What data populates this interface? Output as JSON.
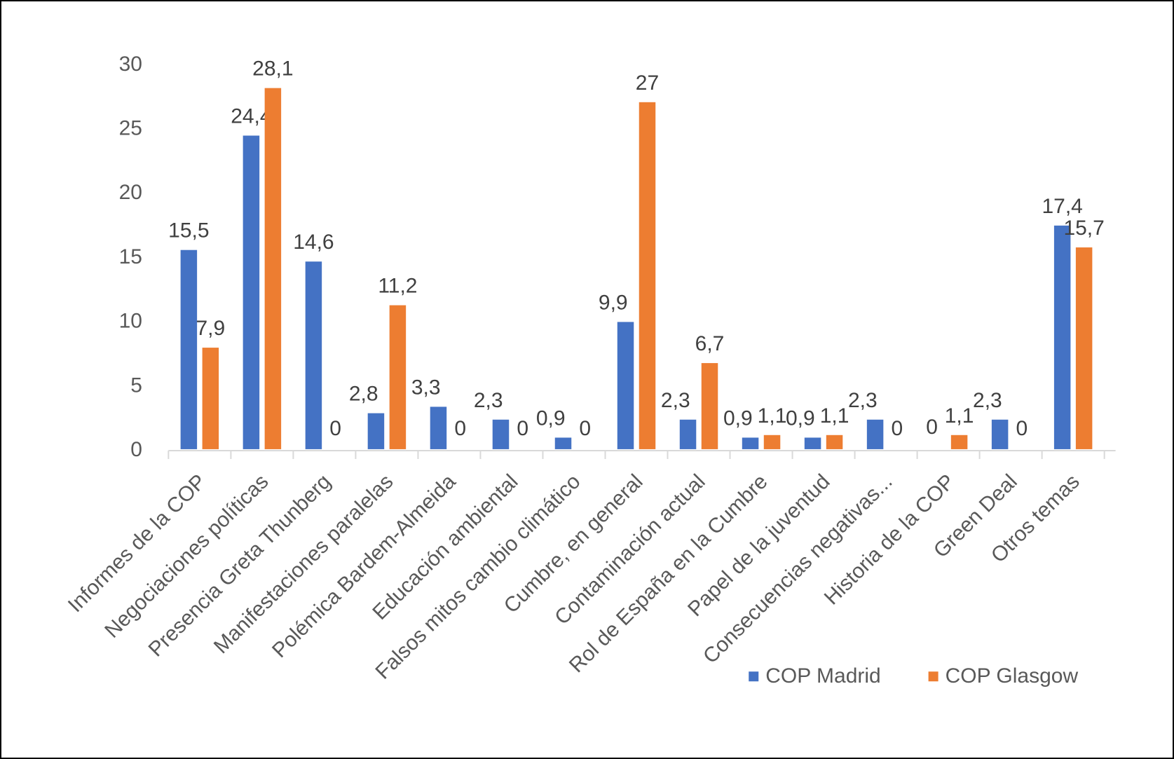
{
  "chart_data": {
    "type": "bar",
    "title": "",
    "xlabel": "",
    "ylabel": "",
    "ylim": [
      0,
      30
    ],
    "yticks": [
      "0",
      "5",
      "10",
      "15",
      "20",
      "25",
      "30"
    ],
    "grid": false,
    "legend_position": "bottom-right",
    "categories": [
      "Informes de la COP",
      "Negociaciones políticas",
      "Presencia Greta Thunberg",
      "Manifestaciones paralelas",
      "Polémica Bardem-Almeida",
      "Educación ambiental",
      "Falsos mitos  cambio climático",
      "Cumbre, en general",
      "Contaminación actual",
      "Rol de España en la Cumbre",
      "Papel de la juventud",
      "Consecuencias negativas...",
      "Historia de la COP",
      "Green Deal",
      "Otros temas"
    ],
    "series": [
      {
        "name": "COP Madrid",
        "color": "#4472C4",
        "values": [
          15.5,
          24.4,
          14.6,
          2.8,
          3.3,
          2.3,
          0.9,
          9.9,
          2.3,
          0.9,
          0.9,
          2.3,
          0,
          2.3,
          17.4
        ],
        "labels": [
          "15,5",
          "24,4",
          "14,6",
          "2,8",
          "3,3",
          "2,3",
          "0,9",
          "9,9",
          "2,3",
          "0,9",
          "0,9",
          "2,3",
          "0",
          "2,3",
          "17,4"
        ]
      },
      {
        "name": "COP Glasgow",
        "color": "#ED7D31",
        "values": [
          7.9,
          28.1,
          0,
          11.2,
          0,
          0,
          0,
          27,
          6.7,
          1.1,
          1.1,
          0,
          1.1,
          0,
          15.7
        ],
        "labels": [
          "7,9",
          "28,1",
          "0",
          "11,2",
          "0",
          "0",
          "0",
          "27",
          "6,7",
          "1,1",
          "1,1",
          "0",
          "1,1",
          "0",
          "15,7"
        ]
      }
    ]
  }
}
